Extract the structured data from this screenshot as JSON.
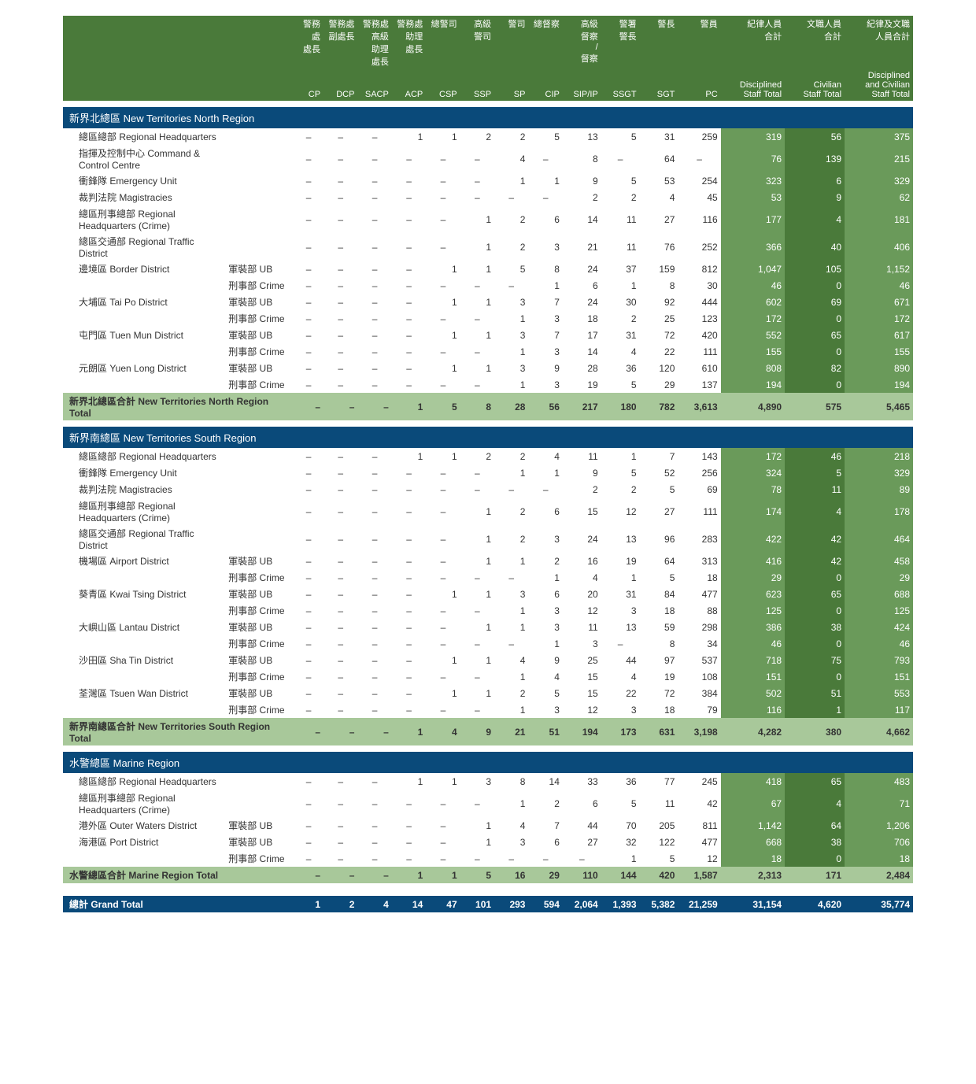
{
  "columns": {
    "top_cn": [
      "警務處\n處長",
      "警務處\n副處長",
      "警務處\n高級\n助理\n處長",
      "警務處\n助理\n處長",
      "總警司",
      "高級\n警司",
      "警司",
      "總督察",
      "高級\n督察\n/\n督察",
      "警署\n警長",
      "警長",
      "警員",
      "紀律人員\n合計",
      "文職人員\n合計",
      "紀律及文職\n人員合計"
    ],
    "bot": [
      "CP",
      "DCP",
      "SACP",
      "ACP",
      "CSP",
      "SSP",
      "SP",
      "CIP",
      "SIP/IP",
      "SSGT",
      "SGT",
      "PC",
      "Disciplined\nStaff Total",
      "Civilian\nStaff Total",
      "Disciplined\nand Civilian\nStaff Total"
    ]
  },
  "sections": [
    {
      "header": "新界北總區 New Territories North Region",
      "rows": [
        {
          "name": "總區總部 Regional Headquarters",
          "sub": "",
          "v": [
            "–",
            "–",
            "–",
            "1",
            "1",
            "2",
            "2",
            "5",
            "13",
            "5",
            "31",
            "259",
            "319",
            "56",
            "375"
          ]
        },
        {
          "name": "指揮及控制中心 Command & Control Centre",
          "sub": "",
          "v": [
            "–",
            "–",
            "–",
            "–",
            "–",
            "–",
            "4",
            "–",
            "8",
            "–",
            "64",
            "–",
            "76",
            "139",
            "215"
          ]
        },
        {
          "name": "衝鋒隊 Emergency Unit",
          "sub": "",
          "v": [
            "–",
            "–",
            "–",
            "–",
            "–",
            "–",
            "1",
            "1",
            "9",
            "5",
            "53",
            "254",
            "323",
            "6",
            "329"
          ]
        },
        {
          "name": "裁判法院 Magistracies",
          "sub": "",
          "v": [
            "–",
            "–",
            "–",
            "–",
            "–",
            "–",
            "–",
            "–",
            "2",
            "2",
            "4",
            "45",
            "53",
            "9",
            "62"
          ]
        },
        {
          "name": "總區刑事總部 Regional Headquarters (Crime)",
          "sub": "",
          "v": [
            "–",
            "–",
            "–",
            "–",
            "–",
            "1",
            "2",
            "6",
            "14",
            "11",
            "27",
            "116",
            "177",
            "4",
            "181"
          ]
        },
        {
          "name": "總區交通部 Regional Traffic District",
          "sub": "",
          "v": [
            "–",
            "–",
            "–",
            "–",
            "–",
            "1",
            "2",
            "3",
            "21",
            "11",
            "76",
            "252",
            "366",
            "40",
            "406"
          ]
        },
        {
          "name": "邊境區 Border District",
          "sub": "軍裝部 UB",
          "v": [
            "–",
            "–",
            "–",
            "–",
            "1",
            "1",
            "5",
            "8",
            "24",
            "37",
            "159",
            "812",
            "1,047",
            "105",
            "1,152"
          ]
        },
        {
          "name": "",
          "sub": "刑事部 Crime",
          "v": [
            "–",
            "–",
            "–",
            "–",
            "–",
            "–",
            "–",
            "1",
            "6",
            "1",
            "8",
            "30",
            "46",
            "0",
            "46"
          ]
        },
        {
          "name": "大埔區 Tai Po District",
          "sub": "軍裝部 UB",
          "v": [
            "–",
            "–",
            "–",
            "–",
            "1",
            "1",
            "3",
            "7",
            "24",
            "30",
            "92",
            "444",
            "602",
            "69",
            "671"
          ]
        },
        {
          "name": "",
          "sub": "刑事部 Crime",
          "v": [
            "–",
            "–",
            "–",
            "–",
            "–",
            "–",
            "1",
            "3",
            "18",
            "2",
            "25",
            "123",
            "172",
            "0",
            "172"
          ]
        },
        {
          "name": "屯門區 Tuen Mun District",
          "sub": "軍裝部 UB",
          "v": [
            "–",
            "–",
            "–",
            "–",
            "1",
            "1",
            "3",
            "7",
            "17",
            "31",
            "72",
            "420",
            "552",
            "65",
            "617"
          ]
        },
        {
          "name": "",
          "sub": "刑事部 Crime",
          "v": [
            "–",
            "–",
            "–",
            "–",
            "–",
            "–",
            "1",
            "3",
            "14",
            "4",
            "22",
            "111",
            "155",
            "0",
            "155"
          ]
        },
        {
          "name": "元朗區 Yuen Long District",
          "sub": "軍裝部 UB",
          "v": [
            "–",
            "–",
            "–",
            "–",
            "1",
            "1",
            "3",
            "9",
            "28",
            "36",
            "120",
            "610",
            "808",
            "82",
            "890"
          ]
        },
        {
          "name": "",
          "sub": "刑事部 Crime",
          "v": [
            "–",
            "–",
            "–",
            "–",
            "–",
            "–",
            "1",
            "3",
            "19",
            "5",
            "29",
            "137",
            "194",
            "0",
            "194"
          ]
        }
      ],
      "subtotal": {
        "name": "新界北總區合計 New Territories North Region Total",
        "v": [
          "–",
          "–",
          "–",
          "1",
          "5",
          "8",
          "28",
          "56",
          "217",
          "180",
          "782",
          "3,613",
          "4,890",
          "575",
          "5,465"
        ]
      }
    },
    {
      "header": "新界南總區 New Territories South Region",
      "rows": [
        {
          "name": "總區總部 Regional Headquarters",
          "sub": "",
          "v": [
            "–",
            "–",
            "–",
            "1",
            "1",
            "2",
            "2",
            "4",
            "11",
            "1",
            "7",
            "143",
            "172",
            "46",
            "218"
          ]
        },
        {
          "name": "衝鋒隊 Emergency Unit",
          "sub": "",
          "v": [
            "–",
            "–",
            "–",
            "–",
            "–",
            "–",
            "1",
            "1",
            "9",
            "5",
            "52",
            "256",
            "324",
            "5",
            "329"
          ]
        },
        {
          "name": "裁判法院 Magistracies",
          "sub": "",
          "v": [
            "–",
            "–",
            "–",
            "–",
            "–",
            "–",
            "–",
            "–",
            "2",
            "2",
            "5",
            "69",
            "78",
            "11",
            "89"
          ]
        },
        {
          "name": "總區刑事總部 Regional Headquarters (Crime)",
          "sub": "",
          "v": [
            "–",
            "–",
            "–",
            "–",
            "–",
            "1",
            "2",
            "6",
            "15",
            "12",
            "27",
            "111",
            "174",
            "4",
            "178"
          ]
        },
        {
          "name": "總區交通部 Regional Traffic District",
          "sub": "",
          "v": [
            "–",
            "–",
            "–",
            "–",
            "–",
            "1",
            "2",
            "3",
            "24",
            "13",
            "96",
            "283",
            "422",
            "42",
            "464"
          ]
        },
        {
          "name": "機場區 Airport District",
          "sub": "軍裝部 UB",
          "v": [
            "–",
            "–",
            "–",
            "–",
            "–",
            "1",
            "1",
            "2",
            "16",
            "19",
            "64",
            "313",
            "416",
            "42",
            "458"
          ]
        },
        {
          "name": "",
          "sub": "刑事部 Crime",
          "v": [
            "–",
            "–",
            "–",
            "–",
            "–",
            "–",
            "–",
            "1",
            "4",
            "1",
            "5",
            "18",
            "29",
            "0",
            "29"
          ]
        },
        {
          "name": "葵青區 Kwai Tsing District",
          "sub": "軍裝部 UB",
          "v": [
            "–",
            "–",
            "–",
            "–",
            "1",
            "1",
            "3",
            "6",
            "20",
            "31",
            "84",
            "477",
            "623",
            "65",
            "688"
          ]
        },
        {
          "name": "",
          "sub": "刑事部 Crime",
          "v": [
            "–",
            "–",
            "–",
            "–",
            "–",
            "–",
            "1",
            "3",
            "12",
            "3",
            "18",
            "88",
            "125",
            "0",
            "125"
          ]
        },
        {
          "name": "大嶼山區 Lantau District",
          "sub": "軍裝部 UB",
          "v": [
            "–",
            "–",
            "–",
            "–",
            "–",
            "1",
            "1",
            "3",
            "11",
            "13",
            "59",
            "298",
            "386",
            "38",
            "424"
          ]
        },
        {
          "name": "",
          "sub": "刑事部 Crime",
          "v": [
            "–",
            "–",
            "–",
            "–",
            "–",
            "–",
            "–",
            "1",
            "3",
            "–",
            "8",
            "34",
            "46",
            "0",
            "46"
          ]
        },
        {
          "name": "沙田區 Sha Tin District",
          "sub": "軍裝部 UB",
          "v": [
            "–",
            "–",
            "–",
            "–",
            "1",
            "1",
            "4",
            "9",
            "25",
            "44",
            "97",
            "537",
            "718",
            "75",
            "793"
          ]
        },
        {
          "name": "",
          "sub": "刑事部 Crime",
          "v": [
            "–",
            "–",
            "–",
            "–",
            "–",
            "–",
            "1",
            "4",
            "15",
            "4",
            "19",
            "108",
            "151",
            "0",
            "151"
          ]
        },
        {
          "name": "荃灣區 Tsuen Wan District",
          "sub": "軍裝部 UB",
          "v": [
            "–",
            "–",
            "–",
            "–",
            "1",
            "1",
            "2",
            "5",
            "15",
            "22",
            "72",
            "384",
            "502",
            "51",
            "553"
          ]
        },
        {
          "name": "",
          "sub": "刑事部 Crime",
          "v": [
            "–",
            "–",
            "–",
            "–",
            "–",
            "–",
            "1",
            "3",
            "12",
            "3",
            "18",
            "79",
            "116",
            "1",
            "117"
          ]
        }
      ],
      "subtotal": {
        "name": "新界南總區合計 New Territories South Region Total",
        "v": [
          "–",
          "–",
          "–",
          "1",
          "4",
          "9",
          "21",
          "51",
          "194",
          "173",
          "631",
          "3,198",
          "4,282",
          "380",
          "4,662"
        ]
      }
    },
    {
      "header": "水警總區 Marine Region",
      "rows": [
        {
          "name": "總區總部 Regional Headquarters",
          "sub": "",
          "v": [
            "–",
            "–",
            "–",
            "1",
            "1",
            "3",
            "8",
            "14",
            "33",
            "36",
            "77",
            "245",
            "418",
            "65",
            "483"
          ]
        },
        {
          "name": "總區刑事總部 Regional Headquarters (Crime)",
          "sub": "",
          "v": [
            "–",
            "–",
            "–",
            "–",
            "–",
            "–",
            "1",
            "2",
            "6",
            "5",
            "11",
            "42",
            "67",
            "4",
            "71"
          ]
        },
        {
          "name": "港外區 Outer Waters District",
          "sub": "軍裝部 UB",
          "v": [
            "–",
            "–",
            "–",
            "–",
            "–",
            "1",
            "4",
            "7",
            "44",
            "70",
            "205",
            "811",
            "1,142",
            "64",
            "1,206"
          ]
        },
        {
          "name": "海港區 Port District",
          "sub": "軍裝部 UB",
          "v": [
            "–",
            "–",
            "–",
            "–",
            "–",
            "1",
            "3",
            "6",
            "27",
            "32",
            "122",
            "477",
            "668",
            "38",
            "706"
          ]
        },
        {
          "name": "",
          "sub": "刑事部 Crime",
          "v": [
            "–",
            "–",
            "–",
            "–",
            "–",
            "–",
            "–",
            "–",
            "–",
            "1",
            "5",
            "12",
            "18",
            "0",
            "18"
          ]
        }
      ],
      "subtotal": {
        "name": "水警總區合計  Marine Region Total",
        "v": [
          "–",
          "–",
          "–",
          "1",
          "1",
          "5",
          "16",
          "29",
          "110",
          "144",
          "420",
          "1,587",
          "2,313",
          "171",
          "2,484"
        ]
      }
    }
  ],
  "grandtotal": {
    "name": "總計 Grand Total",
    "v": [
      "1",
      "2",
      "4",
      "14",
      "47",
      "101",
      "293",
      "594",
      "2,064",
      "1,393",
      "5,382",
      "21,259",
      "31,154",
      "4,620",
      "35,774"
    ]
  },
  "colors": {
    "header_bg": "#4a7a3a",
    "section_bg": "#0a4a7a",
    "subtotal_bg": "#a8c89a",
    "wide_bg": "#6a9a5a"
  }
}
